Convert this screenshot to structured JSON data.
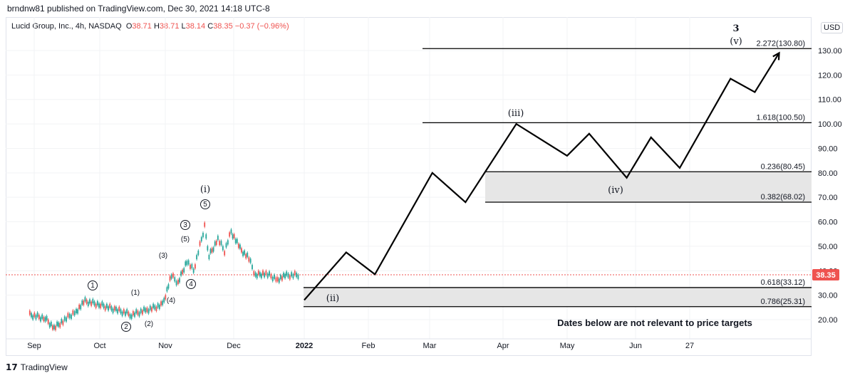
{
  "header": {
    "published": "brndnw81 published on TradingView.com, Dec 30, 2021 14:18 UTC-8"
  },
  "legend": {
    "symbol": "Lucid Group, Inc., 4h, NASDAQ",
    "o_label": "O",
    "o_value": "38.71",
    "h_label": "H",
    "h_value": "38.71",
    "l_label": "L",
    "l_value": "38.14",
    "c_label": "C",
    "c_value": "38.35",
    "change": "−0.37 (−0.96%)"
  },
  "currency": "USD",
  "footer": {
    "brand": "TradingView"
  },
  "colors": {
    "up": "#26a69a",
    "down": "#ef5350",
    "last_price": "#ef5350",
    "zone": "#e6e6e6"
  },
  "chart_data": {
    "type": "line",
    "ylim": [
      12,
      138
    ],
    "y_ticks": [
      "20.00",
      "30.00",
      "40.00",
      "50.00",
      "60.00",
      "70.00",
      "80.00",
      "90.00",
      "100.00",
      "110.00",
      "120.00",
      "130.00"
    ],
    "x_ticks": [
      "Sep",
      "Oct",
      "Nov",
      "Dec",
      "2022",
      "Feb",
      "Mar",
      "Apr",
      "May",
      "Jun",
      "27"
    ],
    "last_price": "38.35",
    "price_history": [
      {
        "x": "Aug 30",
        "y": 22.0
      },
      {
        "x": "Sep 6",
        "y": 20.5
      },
      {
        "x": "Sep 10",
        "y": 16.5
      },
      {
        "x": "Sep 14",
        "y": 19.5
      },
      {
        "x": "Sep 20",
        "y": 23.5
      },
      {
        "x": "Sep 24",
        "y": 27.5
      },
      {
        "x": "Oct 1",
        "y": 26.0
      },
      {
        "x": "Oct 8",
        "y": 24.0
      },
      {
        "x": "Oct 15",
        "y": 22.0
      },
      {
        "x": "Oct 22",
        "y": 24.0
      },
      {
        "x": "Oct 29",
        "y": 26.0
      },
      {
        "x": "Nov 2",
        "y": 38.0
      },
      {
        "x": "Nov 5",
        "y": 35.0
      },
      {
        "x": "Nov 9",
        "y": 44.0
      },
      {
        "x": "Nov 12",
        "y": 40.0
      },
      {
        "x": "Nov 17",
        "y": 58.0
      },
      {
        "x": "Nov 19",
        "y": 46.0
      },
      {
        "x": "Nov 23",
        "y": 53.0
      },
      {
        "x": "Nov 26",
        "y": 48.0
      },
      {
        "x": "Nov 29",
        "y": 56.0
      },
      {
        "x": "Dec 3",
        "y": 49.0
      },
      {
        "x": "Dec 7",
        "y": 45.0
      },
      {
        "x": "Dec 10",
        "y": 38.0
      },
      {
        "x": "Dec 14",
        "y": 39.0
      },
      {
        "x": "Dec 20",
        "y": 36.5
      },
      {
        "x": "Dec 24",
        "y": 38.0
      },
      {
        "x": "Dec 30",
        "y": 38.35
      }
    ],
    "projection": [
      {
        "x": "Jan 1",
        "y": 28
      },
      {
        "x": "Jan 20",
        "y": 47.5
      },
      {
        "x": "Feb 2",
        "y": 38.5
      },
      {
        "x": "Feb 28",
        "y": 80
      },
      {
        "x": "Mar 15",
        "y": 68
      },
      {
        "x": "Apr 7",
        "y": 100
      },
      {
        "x": "Apr 30",
        "y": 87
      },
      {
        "x": "May 10",
        "y": 96
      },
      {
        "x": "May 27",
        "y": 78
      },
      {
        "x": "Jun 7",
        "y": 94.5
      },
      {
        "x": "Jun 20",
        "y": 82
      },
      {
        "x": "Jul 13",
        "y": 118.5
      },
      {
        "x": "Jul 24",
        "y": 113
      },
      {
        "x": "Aug 4",
        "y": 129
      }
    ],
    "fib_levels": [
      {
        "label": "2.272(130.80)",
        "value": 130.8
      },
      {
        "label": "1.618(100.50)",
        "value": 100.5
      },
      {
        "label": "0.236(80.45)",
        "value": 80.45
      },
      {
        "label": "0.382(68.02)",
        "value": 68.02
      },
      {
        "label": "0.618(33.12)",
        "value": 33.12
      },
      {
        "label": "0.786(25.31)",
        "value": 25.31
      }
    ],
    "zones": [
      {
        "from": 68.02,
        "to": 80.45
      },
      {
        "from": 25.31,
        "to": 33.12
      }
    ],
    "wave_labels": [
      {
        "text": "3",
        "x": "Aug 1",
        "y": 135
      },
      {
        "text": "(v)",
        "x": "Aug 1",
        "y": 132
      },
      {
        "text": "(iii)",
        "x": "Apr 7",
        "y": 104
      },
      {
        "text": "(iv)",
        "x": "May 27",
        "y": 72
      },
      {
        "text": "(ii)",
        "x": "Jan 11",
        "y": 27
      },
      {
        "text": "(i)",
        "x": "Nov 17",
        "y": 65
      }
    ],
    "minor_wave_labels": [
      "1",
      "(1)",
      "2",
      "(2)",
      "(3)",
      "(4)",
      "3",
      "(5)",
      "4",
      "5"
    ],
    "annotation": "Dates below are not relevant to price targets"
  }
}
